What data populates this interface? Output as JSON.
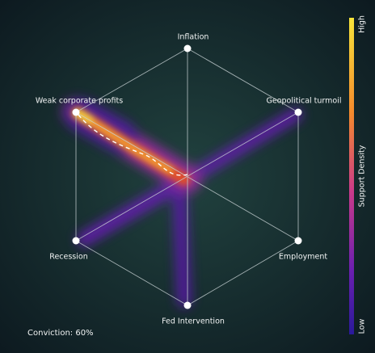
{
  "anchors": [
    "Inflation",
    "Geopolitical turmoil",
    "Employment",
    "Fed Intervention",
    "Recession",
    "Weak corporate profits"
  ],
  "colorbar": {
    "title": "Support Density",
    "high": "High",
    "low": "Low"
  },
  "conviction": "Conviction: 60%"
}
